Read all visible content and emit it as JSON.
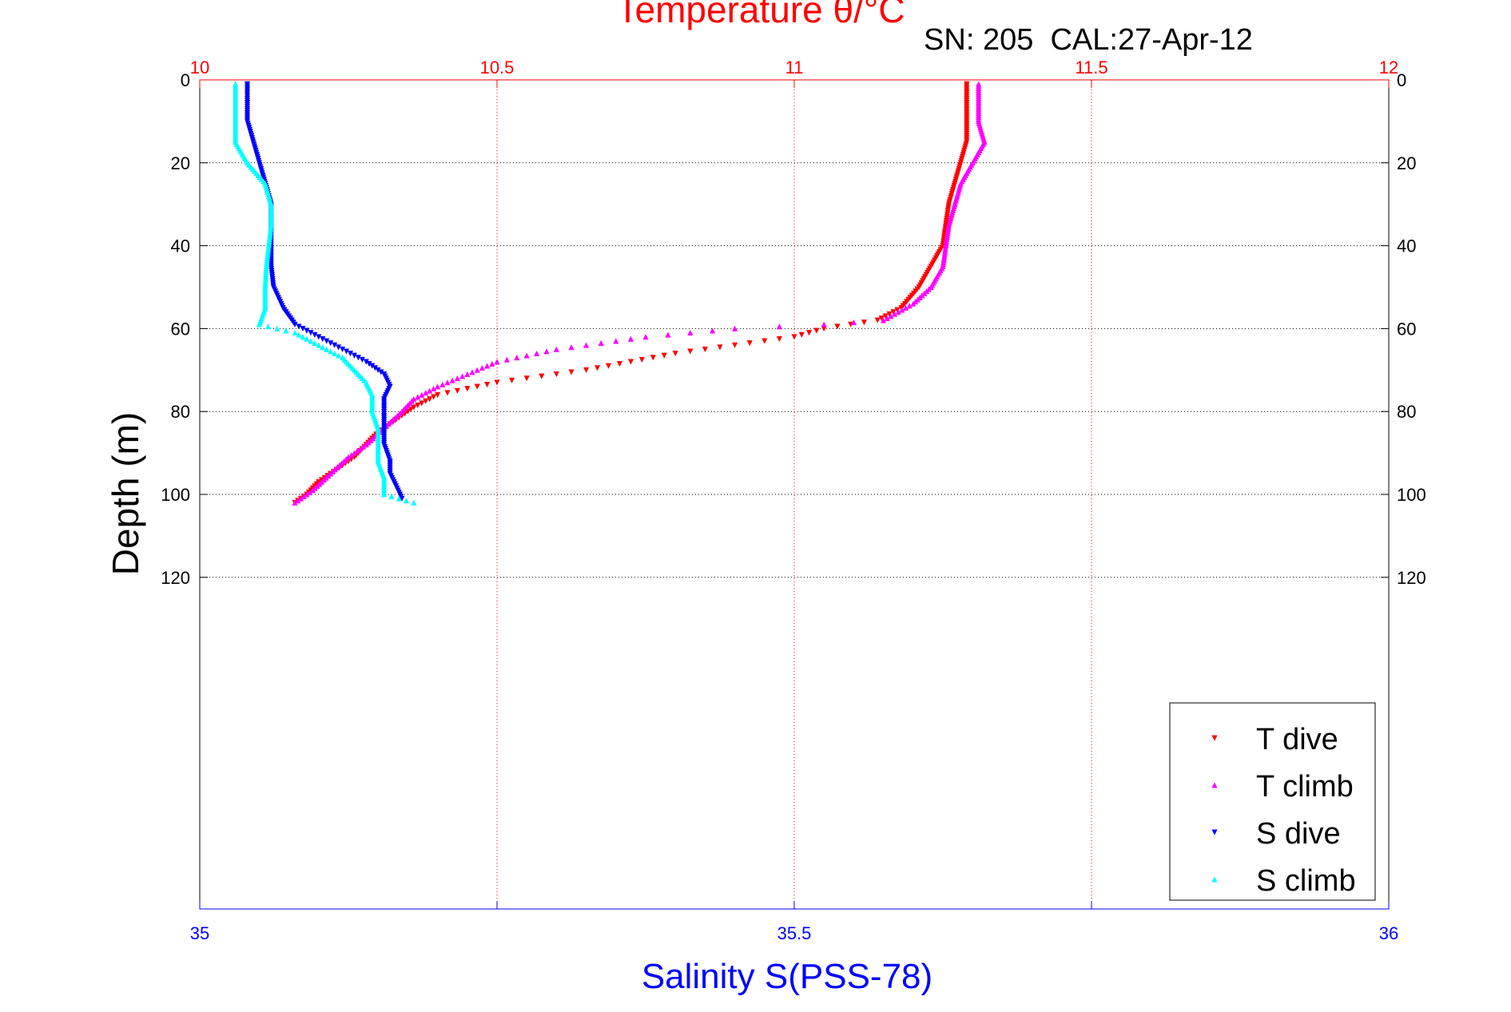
{
  "chart_data": {
    "type": "scatter",
    "title": "Temperature θ/°C",
    "subtitle": "SN: 205  CAL:27-Apr-12",
    "xlabel": "Salinity S(PSS-78)",
    "ylabel": "Depth (m)",
    "temperature_axis": {
      "range": [
        10,
        12
      ],
      "ticks": [
        10,
        10.5,
        11,
        11.5,
        12
      ],
      "tick_labels": [
        "10",
        "10.5",
        "11",
        "11.5",
        "12"
      ],
      "color": "#ff0000"
    },
    "salinity_axis": {
      "range": [
        35,
        36
      ],
      "ticks": [
        35,
        35.25,
        35.5,
        35.75,
        36
      ],
      "tick_labels": [
        "35",
        "",
        "35.5",
        "",
        "36"
      ],
      "color": "#0000ff"
    },
    "depth_axis": {
      "range": [
        0,
        200
      ],
      "reversed": true,
      "ticks": [
        0,
        20,
        40,
        60,
        80,
        100,
        120
      ],
      "tick_labels": [
        "0",
        "20",
        "40",
        "60",
        "80",
        "100",
        "120"
      ]
    },
    "grid": true,
    "legend_position": "bottom-right",
    "series": [
      {
        "name": "T dive",
        "axis": "temperature",
        "color": "#ff0000",
        "marker": "triangle-down",
        "points": [
          [
            11.29,
            1
          ],
          [
            11.29,
            5
          ],
          [
            11.29,
            10
          ],
          [
            11.29,
            15
          ],
          [
            11.28,
            20
          ],
          [
            11.27,
            25
          ],
          [
            11.26,
            30
          ],
          [
            11.255,
            35
          ],
          [
            11.25,
            40
          ],
          [
            11.23,
            45
          ],
          [
            11.21,
            50
          ],
          [
            11.18,
            55
          ],
          [
            11.14,
            58
          ],
          [
            11.05,
            60
          ],
          [
            11.0,
            62
          ],
          [
            10.9,
            64
          ],
          [
            10.8,
            66
          ],
          [
            10.65,
            70
          ],
          [
            10.5,
            73
          ],
          [
            10.4,
            76
          ],
          [
            10.36,
            79
          ],
          [
            10.33,
            82
          ],
          [
            10.3,
            85
          ],
          [
            10.28,
            88
          ],
          [
            10.26,
            91
          ],
          [
            10.23,
            94
          ],
          [
            10.2,
            97
          ],
          [
            10.18,
            100
          ],
          [
            10.16,
            102
          ]
        ]
      },
      {
        "name": "T climb",
        "axis": "temperature",
        "color": "#ff00ff",
        "marker": "triangle-up",
        "points": [
          [
            11.31,
            1
          ],
          [
            11.31,
            5
          ],
          [
            11.31,
            10
          ],
          [
            11.32,
            15
          ],
          [
            11.3,
            20
          ],
          [
            11.28,
            25
          ],
          [
            11.27,
            30
          ],
          [
            11.26,
            35
          ],
          [
            11.255,
            40
          ],
          [
            11.25,
            45
          ],
          [
            11.23,
            50
          ],
          [
            11.2,
            54
          ],
          [
            11.15,
            58
          ],
          [
            11.05,
            59
          ],
          [
            10.9,
            60
          ],
          [
            10.75,
            62
          ],
          [
            10.6,
            65
          ],
          [
            10.5,
            68
          ],
          [
            10.45,
            71
          ],
          [
            10.4,
            74
          ],
          [
            10.36,
            77
          ],
          [
            10.34,
            80
          ],
          [
            10.31,
            84
          ],
          [
            10.28,
            88
          ],
          [
            10.25,
            91
          ],
          [
            10.22,
            95
          ],
          [
            10.19,
            99
          ],
          [
            10.16,
            102
          ]
        ]
      },
      {
        "name": "S dive",
        "axis": "salinity",
        "color": "#0000ff",
        "marker": "triangle-down",
        "points": [
          [
            35.04,
            1
          ],
          [
            35.04,
            5
          ],
          [
            35.04,
            10
          ],
          [
            35.045,
            15
          ],
          [
            35.05,
            20
          ],
          [
            35.055,
            25
          ],
          [
            35.06,
            30
          ],
          [
            35.06,
            35
          ],
          [
            35.06,
            40
          ],
          [
            35.06,
            45
          ],
          [
            35.062,
            50
          ],
          [
            35.07,
            55
          ],
          [
            35.08,
            59
          ],
          [
            35.1,
            62
          ],
          [
            35.12,
            65
          ],
          [
            35.14,
            68
          ],
          [
            35.155,
            71
          ],
          [
            35.16,
            74
          ],
          [
            35.155,
            77
          ],
          [
            35.155,
            80
          ],
          [
            35.155,
            84
          ],
          [
            35.155,
            88
          ],
          [
            35.16,
            92
          ],
          [
            35.16,
            95
          ],
          [
            35.165,
            98
          ],
          [
            35.17,
            101
          ]
        ]
      },
      {
        "name": "S climb",
        "axis": "salinity",
        "color": "#00ffff",
        "marker": "triangle-up",
        "points": [
          [
            35.03,
            1
          ],
          [
            35.03,
            5
          ],
          [
            35.03,
            10
          ],
          [
            35.03,
            15
          ],
          [
            35.04,
            20
          ],
          [
            35.055,
            25
          ],
          [
            35.06,
            30
          ],
          [
            35.06,
            35
          ],
          [
            35.058,
            40
          ],
          [
            35.056,
            45
          ],
          [
            35.055,
            50
          ],
          [
            35.055,
            55
          ],
          [
            35.05,
            59
          ],
          [
            35.08,
            61
          ],
          [
            35.1,
            64
          ],
          [
            35.12,
            67
          ],
          [
            35.13,
            70
          ],
          [
            35.14,
            73
          ],
          [
            35.145,
            76
          ],
          [
            35.145,
            80
          ],
          [
            35.15,
            84
          ],
          [
            35.15,
            88
          ],
          [
            35.15,
            92
          ],
          [
            35.155,
            96
          ],
          [
            35.155,
            100
          ],
          [
            35.18,
            102
          ]
        ]
      }
    ]
  }
}
